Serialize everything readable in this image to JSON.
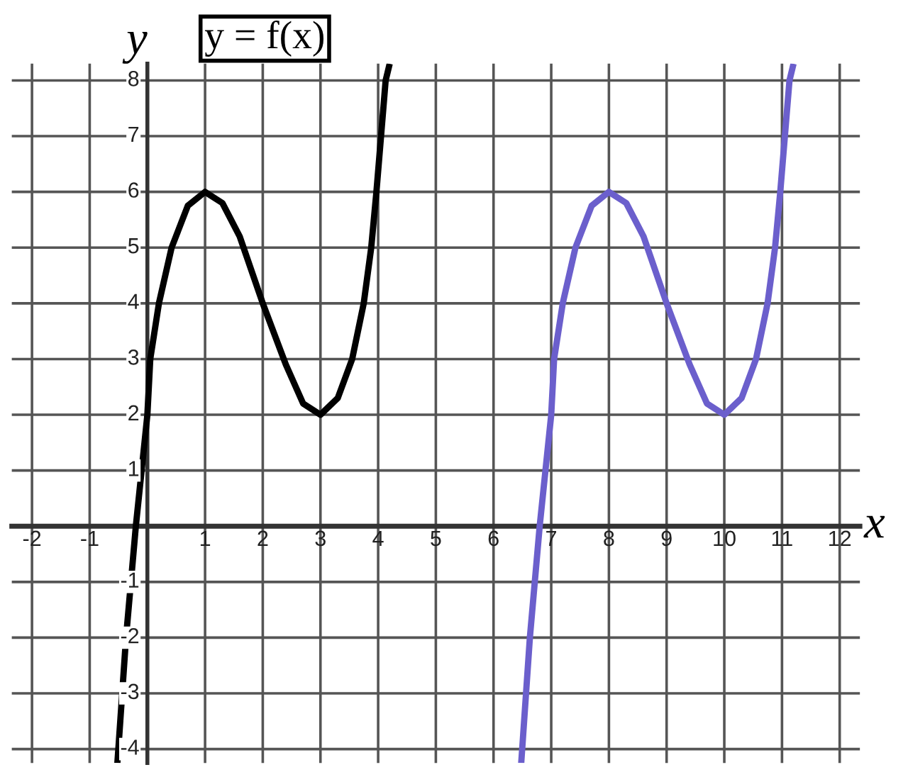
{
  "chart_data": {
    "type": "line",
    "xlabel": "x",
    "ylabel": "y",
    "annotations": [
      "y = f(x)"
    ],
    "xlim": [
      -2.35,
      12.35
    ],
    "ylim": [
      -4.25,
      8.3
    ],
    "xticks": [
      -2,
      -1,
      1,
      2,
      3,
      4,
      5,
      6,
      7,
      8,
      9,
      10,
      11,
      12
    ],
    "yticks": [
      -4,
      -3,
      -2,
      -1,
      1,
      2,
      3,
      4,
      5,
      6,
      7,
      8
    ],
    "grid": true,
    "line_style": "solid",
    "marker": "none",
    "series": [
      {
        "color": "#000000",
        "x": [
          -0.52,
          -0.37,
          -0.2,
          -0.1,
          0,
          0.05,
          0.2,
          0.42,
          0.7,
          1,
          1.3,
          1.6,
          2,
          2.4,
          2.7,
          3,
          3.3,
          3.55,
          3.75,
          3.88,
          3.97,
          4.05,
          4.13,
          4.2
        ],
        "values": [
          -4.25,
          -2,
          0,
          1,
          2,
          3,
          4,
          5,
          5.75,
          6,
          5.8,
          5.2,
          4,
          2.9,
          2.2,
          2,
          2.3,
          3,
          4,
          5,
          6,
          7,
          8,
          8.3
        ]
      },
      {
        "color": "#6b5fcc",
        "x": [
          6.48,
          6.63,
          6.8,
          6.9,
          7,
          7.05,
          7.2,
          7.42,
          7.7,
          8,
          8.3,
          8.6,
          9,
          9.4,
          9.7,
          10,
          10.3,
          10.55,
          10.75,
          10.88,
          10.97,
          11.05,
          11.13,
          11.2
        ],
        "values": [
          -4.25,
          -2,
          0,
          1,
          2,
          3,
          4,
          5,
          5.75,
          6,
          5.8,
          5.2,
          4,
          2.9,
          2.2,
          2,
          2.3,
          3,
          4,
          5,
          6,
          7,
          8,
          8.3
        ]
      }
    ]
  }
}
